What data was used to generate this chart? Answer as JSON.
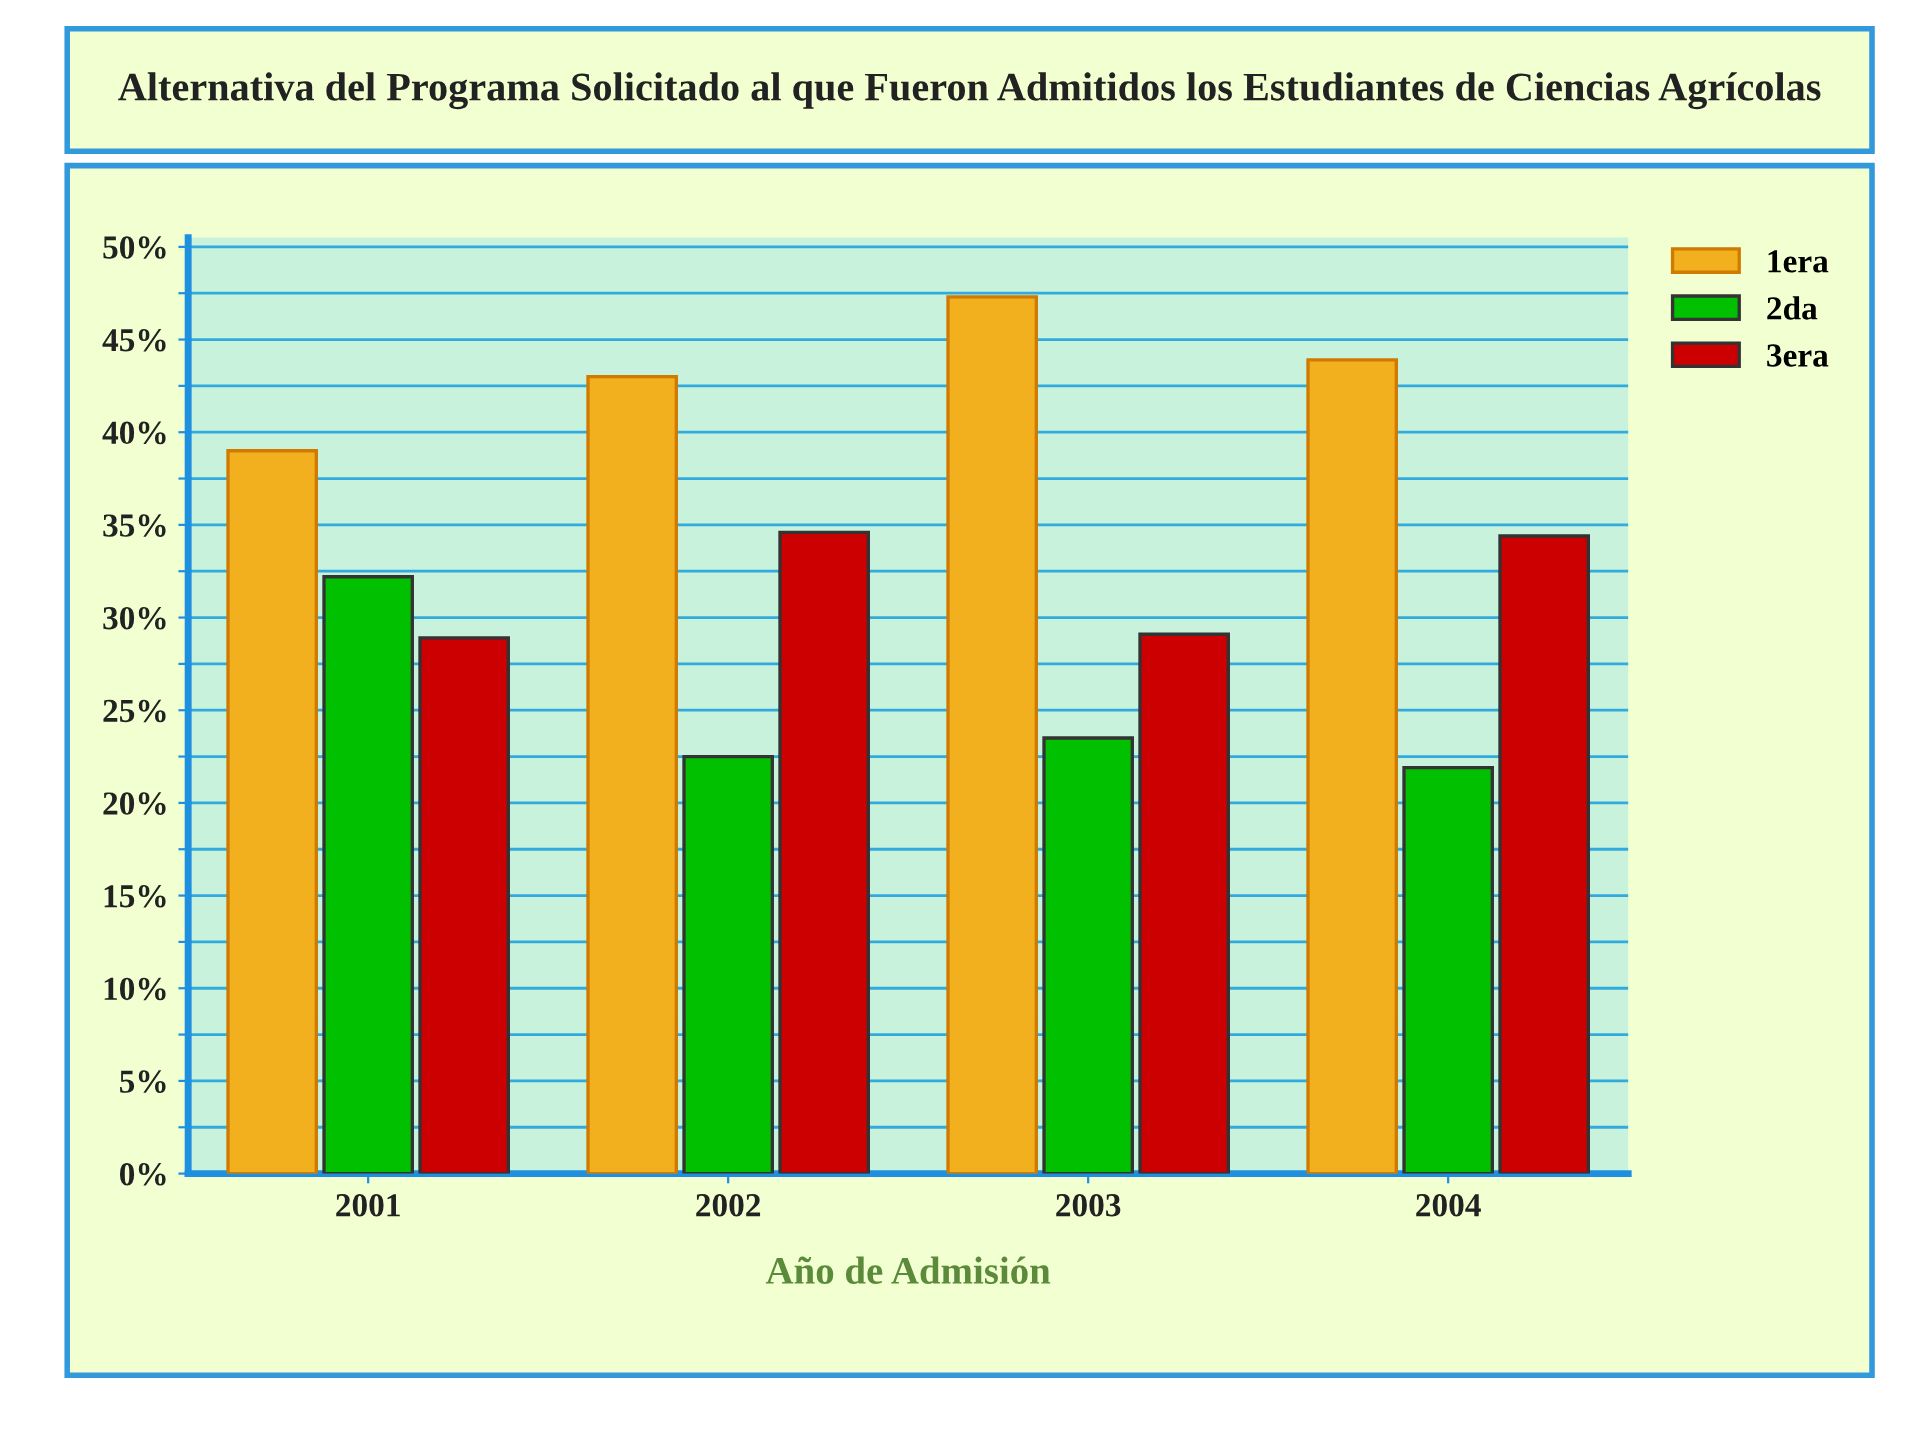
{
  "chart_data": {
    "type": "bar",
    "title": "Alternativa del Programa Solicitado al que Fueron Admitidos los Estudiantes de Ciencias Agrícolas",
    "xlabel": "Año de Admisión",
    "categories": [
      "2001",
      "2002",
      "2003",
      "2004"
    ],
    "series": [
      {
        "name": "1era",
        "color": "#f2b01e",
        "values": [
          39.0,
          43.0,
          47.3,
          43.9
        ]
      },
      {
        "name": "2da",
        "color": "#00c000",
        "values": [
          32.2,
          22.5,
          23.5,
          21.9
        ]
      },
      {
        "name": "3era",
        "color": "#cc0000",
        "values": [
          28.9,
          34.6,
          29.1,
          34.4
        ]
      }
    ],
    "ylim": [
      0,
      50.5
    ],
    "yticks": [
      {
        "value": 0,
        "label": "0%"
      },
      {
        "value": 2.5,
        "label": null
      },
      {
        "value": 5,
        "label": "5%"
      },
      {
        "value": 7.5,
        "label": null
      },
      {
        "value": 10,
        "label": "10%"
      },
      {
        "value": 12.5,
        "label": null
      },
      {
        "value": 15,
        "label": "15%"
      },
      {
        "value": 17.5,
        "label": null
      },
      {
        "value": 20,
        "label": "20%"
      },
      {
        "value": 22.5,
        "label": null
      },
      {
        "value": 25,
        "label": "25%"
      },
      {
        "value": 27.5,
        "label": null
      },
      {
        "value": 30,
        "label": "30%"
      },
      {
        "value": 32.5,
        "label": null
      },
      {
        "value": 35,
        "label": "35%"
      },
      {
        "value": 37.5,
        "label": null
      },
      {
        "value": 40,
        "label": "40%"
      },
      {
        "value": 42.5,
        "label": null
      },
      {
        "value": 45,
        "label": "45%"
      },
      {
        "value": 47.5,
        "label": null
      },
      {
        "value": 50,
        "label": "50%"
      }
    ],
    "grid": "y",
    "legend": "top right"
  }
}
